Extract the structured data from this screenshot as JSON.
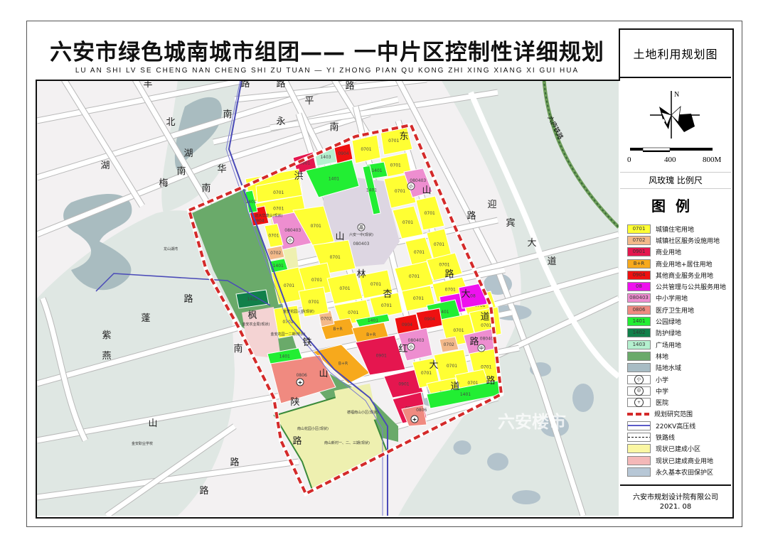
{
  "title": "六安市绿色城南城市组团—— 一中片区控制性详细规划",
  "subtitle": "LU AN SHI LV SE CHENG NAN CHENG SHI ZU TUAN  — YI ZHONG PIAN QU KONG ZHI XING XIANG XI GUI HUA",
  "panel": {
    "drawing_title": "土地利用规划图",
    "north": "N",
    "scale_ticks": [
      "0",
      "400",
      "800M"
    ],
    "scale_caption": "风玫瑰 比例尺",
    "legend_title": "图例",
    "footer_company": "六安市规划设计院有限公司",
    "footer_date": "2021. 08"
  },
  "legend": [
    {
      "code": "0701",
      "label": "城镇住宅用地",
      "color": "#ffff33"
    },
    {
      "code": "0702",
      "label": "城镇社区服务设施用地",
      "color": "#f3b98a"
    },
    {
      "code": "0901",
      "label": "商业用地",
      "color": "#e5164f"
    },
    {
      "code": "B+R",
      "label": "商业用地+居住用地",
      "color": "#f7a91c"
    },
    {
      "code": "0904",
      "label": "其他商业服务业用地",
      "color": "#ee1111"
    },
    {
      "code": "08",
      "label": "公共管理与公共服务用地",
      "color": "#ee11ee"
    },
    {
      "code": "080403",
      "label": "中小学用地",
      "color": "#ee8ed0"
    },
    {
      "code": "0806",
      "label": "医疗卫生用地",
      "color": "#f08a80"
    },
    {
      "code": "1401",
      "label": "公园绿地",
      "color": "#22ee33"
    },
    {
      "code": "1402",
      "label": "防护绿地",
      "color": "#11804a"
    },
    {
      "code": "1403",
      "label": "广场用地",
      "color": "#b5f0cf"
    },
    {
      "code": "",
      "label": "林地",
      "color": "#6aaa6a"
    },
    {
      "code": "",
      "label": "陆地水域",
      "color": "#a8bcc4"
    },
    {
      "code": "小",
      "label": "小学",
      "symbol": "circle"
    },
    {
      "code": "中",
      "label": "中学",
      "symbol": "circle"
    },
    {
      "code": "+",
      "label": "医院",
      "symbol": "circle"
    },
    {
      "code": "",
      "label": "规划研究范围",
      "symbol": "red-dash"
    },
    {
      "code": "",
      "label": "220KV高压线",
      "symbol": "blue-line"
    },
    {
      "code": "",
      "label": "铁路线",
      "symbol": "black-dash"
    },
    {
      "code": "",
      "label": "现状已建成小区",
      "color": "#fbf7a3"
    },
    {
      "code": "",
      "label": "现状已建成商业用地",
      "color": "#f4b8b8"
    },
    {
      "code": "",
      "label": "永久基本农田保护区",
      "color": "#b7c7d6"
    }
  ],
  "map": {
    "road_labels": [
      "丰",
      "路",
      "路",
      "平",
      "路",
      "北",
      "南",
      "永",
      "南",
      "东",
      "湖",
      "湖",
      "梅",
      "南",
      "华",
      "南",
      "洪",
      "山",
      "路",
      "迎",
      "宾",
      "大",
      "道",
      "山",
      "林",
      "杏",
      "路",
      "大",
      "道",
      "枫",
      "铁",
      "南",
      "山",
      "陕",
      "路",
      "红",
      "路",
      "大",
      "道",
      "路",
      "紫",
      "蓬",
      "燕",
      "路",
      "路",
      "山",
      "路",
      "路"
    ],
    "railway_label": "六庐铁路",
    "place_labels": [
      "远大华康山(现状)",
      "六安一中(现状)",
      "龙山湖湾",
      "金安职业学校",
      "德福南山小区(现状)",
      "南山花园小区(现状)",
      "南山新村一、二、三期(现状)",
      "金梦花园三期(现状)",
      "金安农业局(现状)",
      "金安花园一二期(现状)"
    ],
    "school_marks": [
      "小",
      "小",
      "小",
      "中",
      "高"
    ],
    "parcels": [
      "0701",
      "0701",
      "0701",
      "1401",
      "0701",
      "080403",
      "0701",
      "0701",
      "0701",
      "0701",
      "1401",
      "0901",
      "1403",
      "0904",
      "0701",
      "0701",
      "0701",
      "1401",
      "0904",
      "080403",
      "0701",
      "0701",
      "0701",
      "0702",
      "1401",
      "0701",
      "0701",
      "0701",
      "0701",
      "0701",
      "0701",
      "0701",
      "0701",
      "0701",
      "0701",
      "0701",
      "08",
      "08",
      "1401",
      "0701",
      "0701",
      "0904",
      "0904",
      "080403",
      "B+R",
      "B+R",
      "B+R",
      "0901",
      "0901",
      "0901",
      "080403",
      "0702",
      "0701",
      "0701",
      "0701",
      "0701",
      "0701",
      "0806",
      "0806",
      "1402",
      "0702",
      "0701",
      "0701",
      "1401",
      "1401",
      "1401",
      "1401"
    ],
    "watermark": "六安楼市"
  }
}
